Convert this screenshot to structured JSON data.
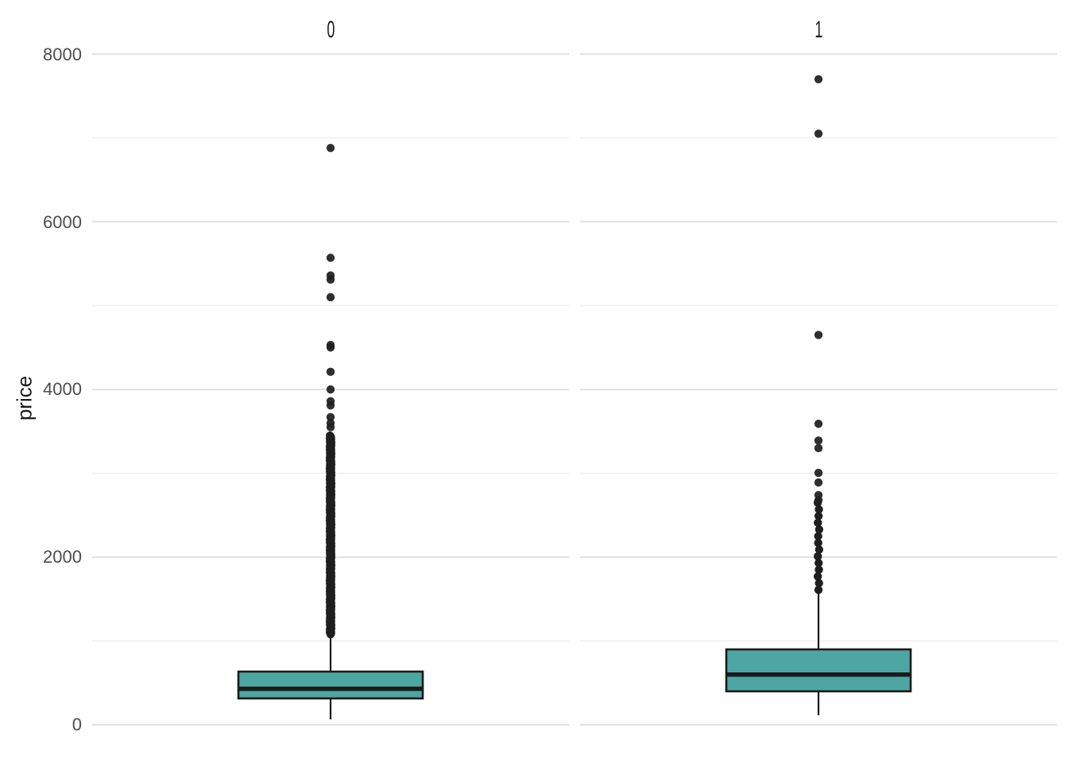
{
  "chart_data": {
    "type": "boxplot",
    "title": "",
    "ylabel": "price",
    "xlabel": "",
    "facet_labels": [
      "0",
      "1"
    ],
    "y_ticks": [
      0,
      2000,
      4000,
      6000,
      8000
    ],
    "y_tick_labels": [
      "0",
      "2000",
      "4000",
      "6000",
      "8000"
    ],
    "y_minor_ticks": [
      1000,
      3000,
      5000,
      7000
    ],
    "ylim": [
      0,
      8300
    ],
    "grid": "horizontal-major-and-minor",
    "legend": "none",
    "facets": [
      {
        "label": "0",
        "box": {
          "whisker_low": 65,
          "q1": 315,
          "median": 430,
          "q3": 635,
          "whisker_high": 1070
        },
        "outliers": [
          6880,
          5570,
          5360,
          5310,
          5100,
          4530,
          4500,
          4210,
          4000,
          3860,
          3810,
          3670,
          3600,
          3550
        ],
        "outlier_dense_band": {
          "from": 1080,
          "to": 3450,
          "count": 200
        }
      },
      {
        "label": "1",
        "box": {
          "whisker_low": 115,
          "q1": 400,
          "median": 600,
          "q3": 900,
          "whisker_high": 1610
        },
        "outliers": [
          7700,
          7050,
          4650,
          3590,
          3390,
          3300,
          3005,
          2890,
          2740,
          2680
        ],
        "outlier_dense_band": {
          "from": 1610,
          "to": 2650,
          "count": 14
        }
      }
    ],
    "colors": {
      "box_fill": "#4EA6A3",
      "box_stroke": "#1A1A1A",
      "median_stroke": "#1A1A1A",
      "whisker_stroke": "#1A1A1A",
      "outlier_fill": "#1F1F1F",
      "grid_major": "#E3E3E3",
      "grid_minor": "#F0F0F0",
      "axis_text": "#4D4D4D",
      "strip_text": "#1A1A1A",
      "background": "#FFFFFF"
    }
  }
}
